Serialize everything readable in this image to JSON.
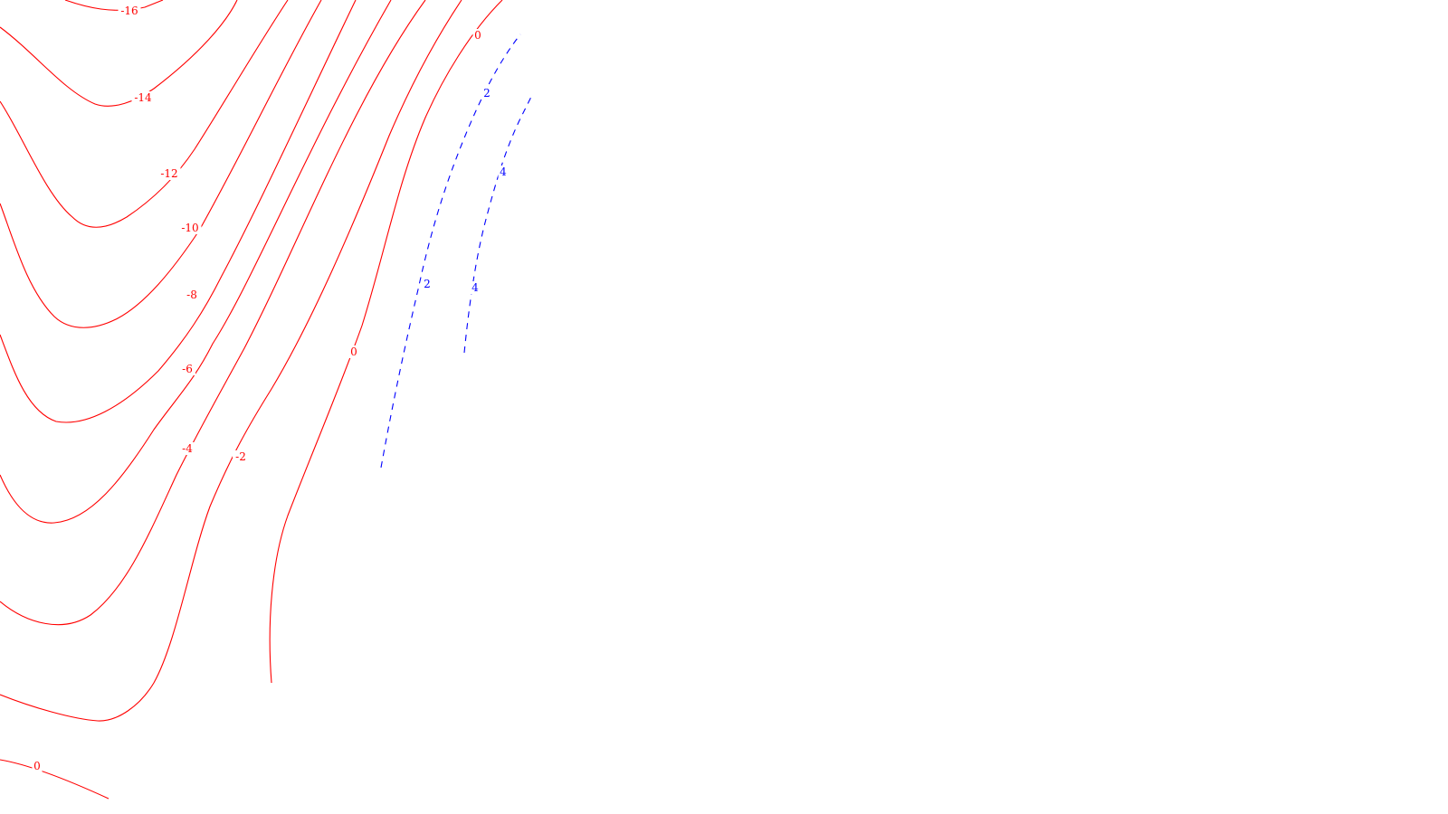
{
  "chart_data": {
    "type": "contour",
    "title": "",
    "xlabel": "",
    "ylabel": "",
    "colors": {
      "negative_and_zero": "#ff0000",
      "positive": "#0000ff"
    },
    "line_styles": {
      "negative_and_zero": "solid",
      "positive": "dashed"
    },
    "levels": [
      -16,
      -14,
      -12,
      -10,
      -8,
      -6,
      -4,
      -2,
      0,
      2,
      4
    ],
    "contours": [
      {
        "level": -16,
        "label": "-16"
      },
      {
        "level": -14,
        "label": "-14"
      },
      {
        "level": -12,
        "label": "-12"
      },
      {
        "level": -10,
        "label": "-10"
      },
      {
        "level": -8,
        "label": "-8"
      },
      {
        "level": -6,
        "label": "-6"
      },
      {
        "level": -4,
        "label": "-4"
      },
      {
        "level": -2,
        "label": "-2"
      },
      {
        "level": 0,
        "label": "0"
      },
      {
        "level": 0,
        "label": "0"
      },
      {
        "level": 2,
        "label": "2"
      },
      {
        "level": 4,
        "label": "4"
      }
    ]
  }
}
